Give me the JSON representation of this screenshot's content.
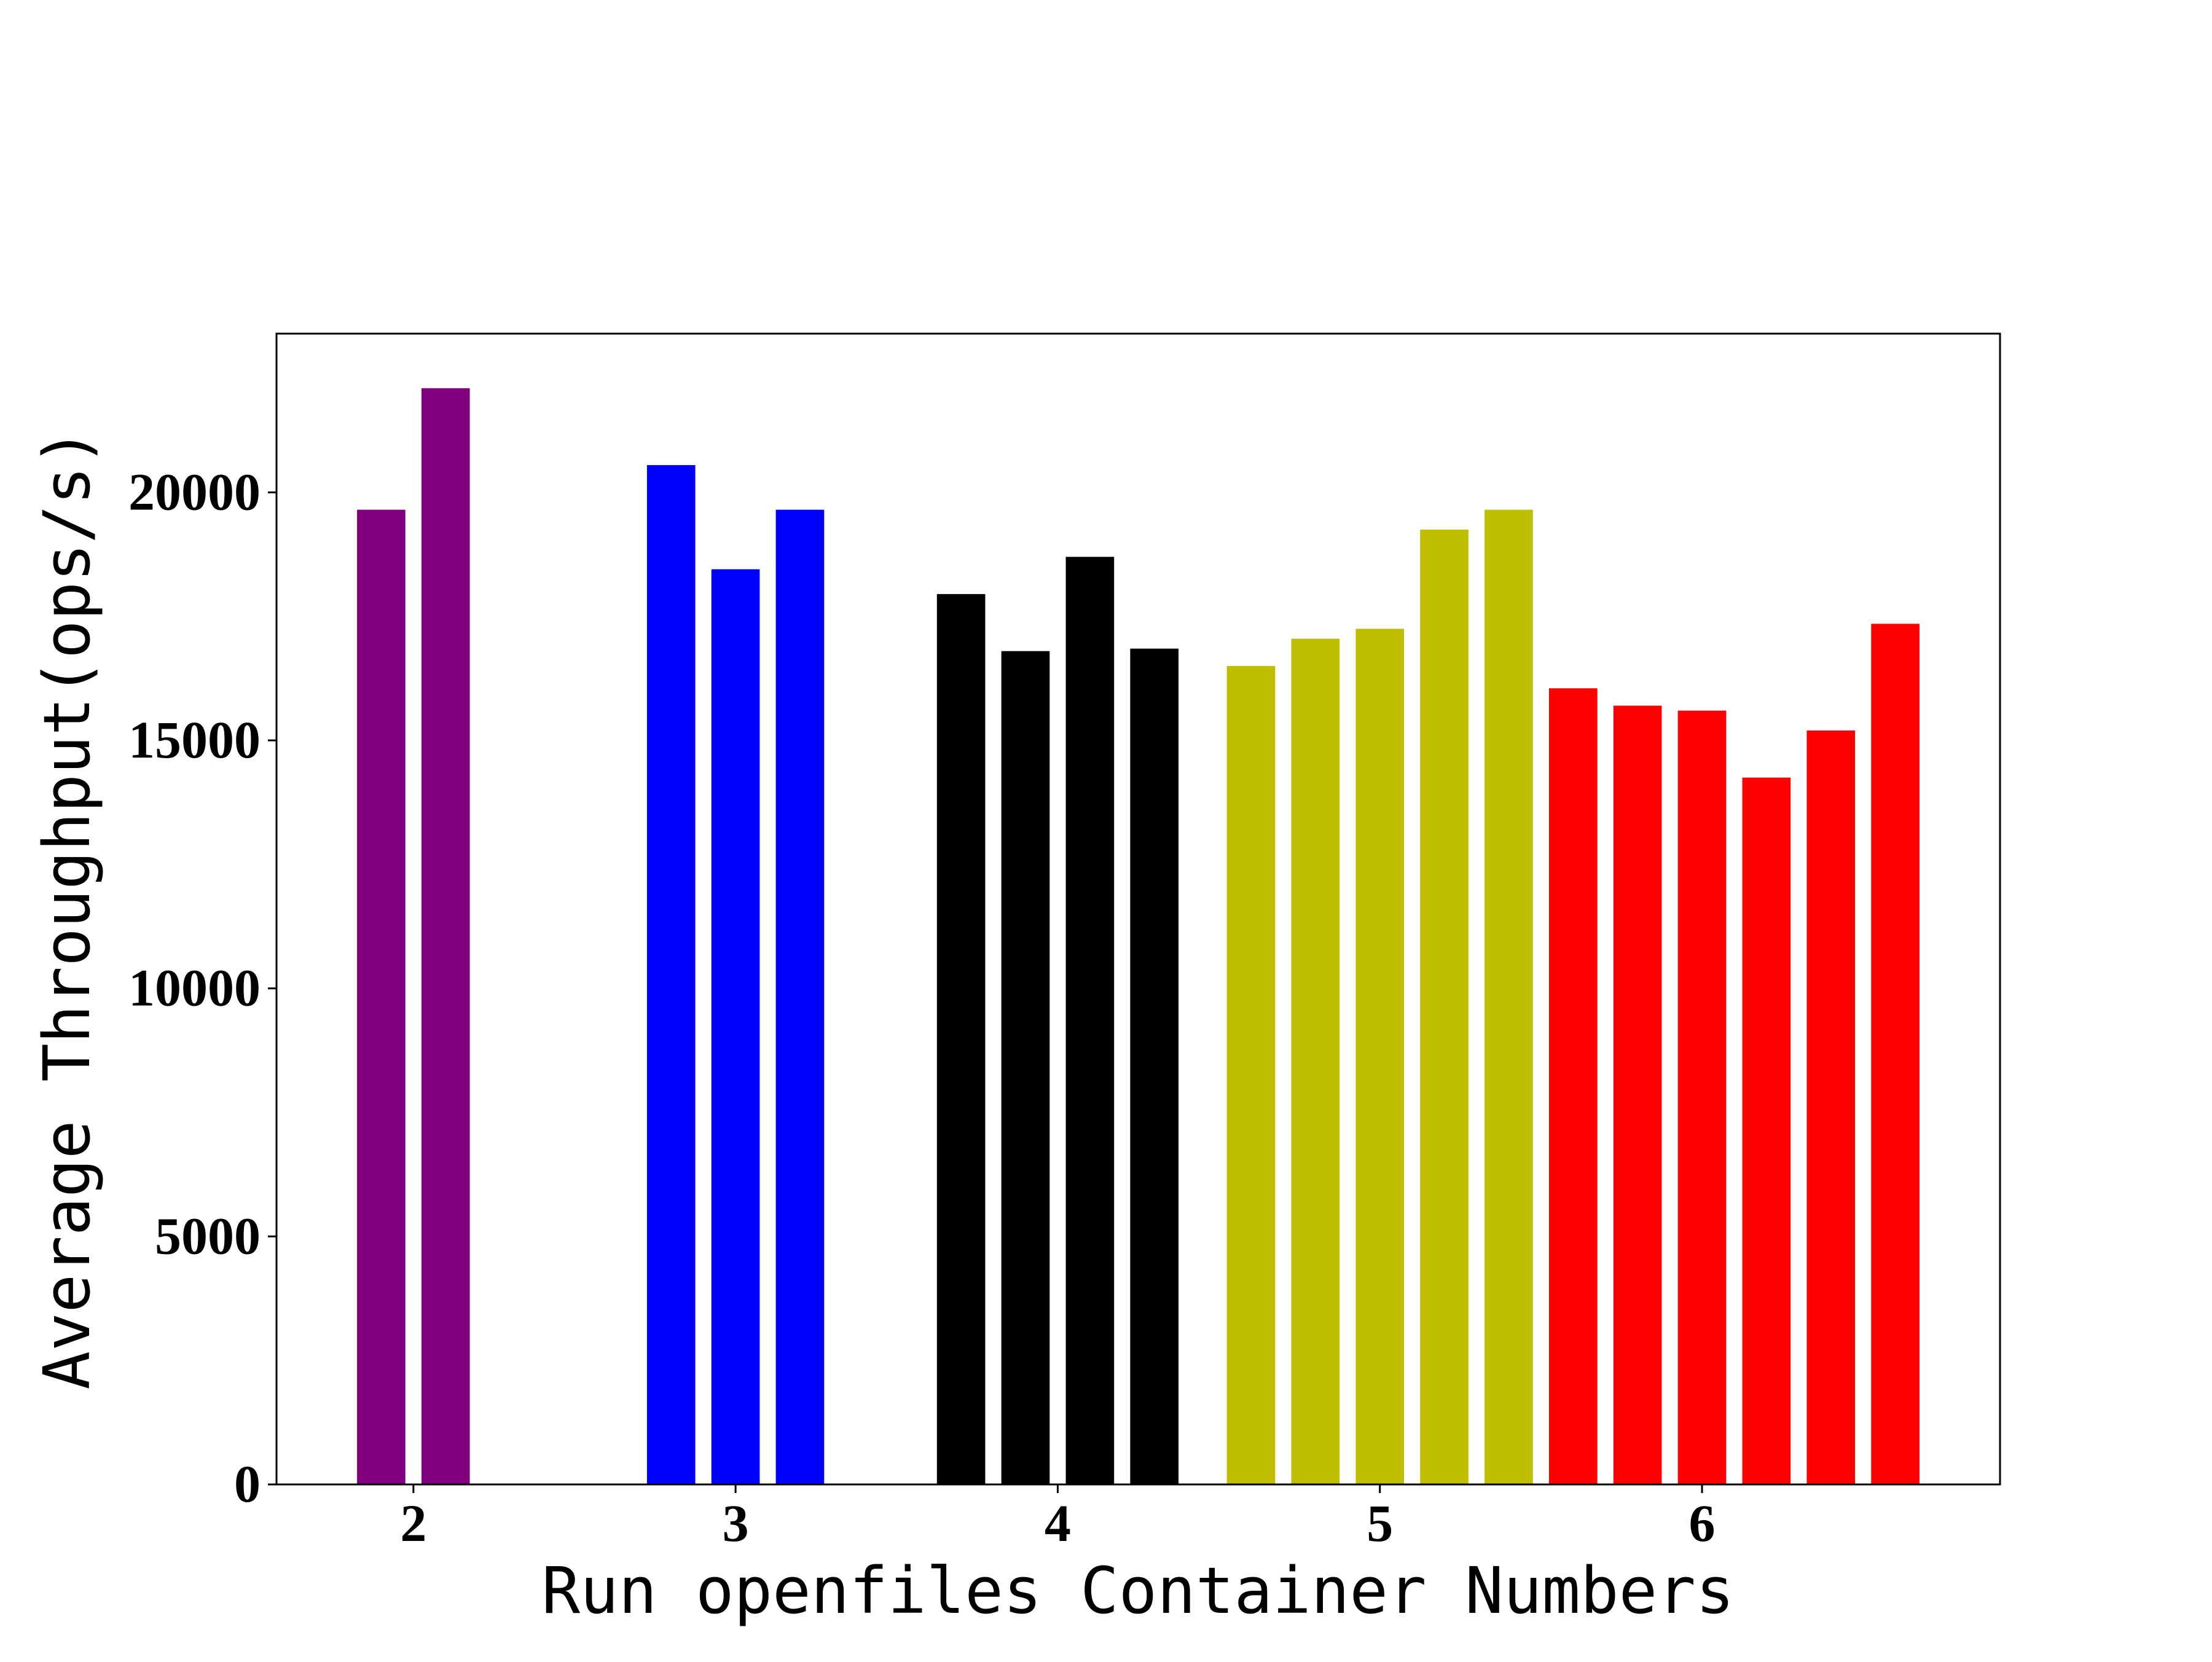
{
  "chart_data": {
    "type": "bar",
    "title": "",
    "xlabel": "Run openfiles Container Numbers",
    "ylabel": "Average Throughput(ops/s)",
    "xlim": [
      1.575,
      6.925
    ],
    "ylim": [
      0,
      23200
    ],
    "xticks": [
      2,
      3,
      4,
      5,
      6
    ],
    "xtick_labels": [
      "2",
      "3",
      "4",
      "5",
      "6"
    ],
    "yticks": [
      0,
      5000,
      10000,
      15000,
      20000
    ],
    "ytick_labels": [
      "0",
      "5000",
      "10000",
      "15000",
      "20000"
    ],
    "bar_width": 0.15,
    "grid": false,
    "legend": "none",
    "groups": [
      {
        "container_count": 2,
        "color": "#800080",
        "x": [
          1.9,
          2.1
        ],
        "values": [
          19650,
          22100
        ]
      },
      {
        "container_count": 3,
        "color": "#0000ff",
        "x": [
          2.8,
          3.0,
          3.2
        ],
        "values": [
          20550,
          18450,
          19650
        ]
      },
      {
        "container_count": 4,
        "color": "#000000",
        "x": [
          3.7,
          3.9,
          4.1,
          4.3
        ],
        "values": [
          17950,
          16800,
          18700,
          16850
        ]
      },
      {
        "container_count": 5,
        "color": "#bfbf00",
        "x": [
          4.6,
          4.8,
          5.0,
          5.2,
          5.4
        ],
        "values": [
          16500,
          17050,
          17250,
          19250,
          19650
        ]
      },
      {
        "container_count": 6,
        "color": "#ff0000",
        "x": [
          5.6,
          5.8,
          6.0,
          6.2,
          6.4,
          6.6
        ],
        "values": [
          16050,
          15700,
          15600,
          14250,
          15200,
          17350
        ]
      }
    ]
  }
}
